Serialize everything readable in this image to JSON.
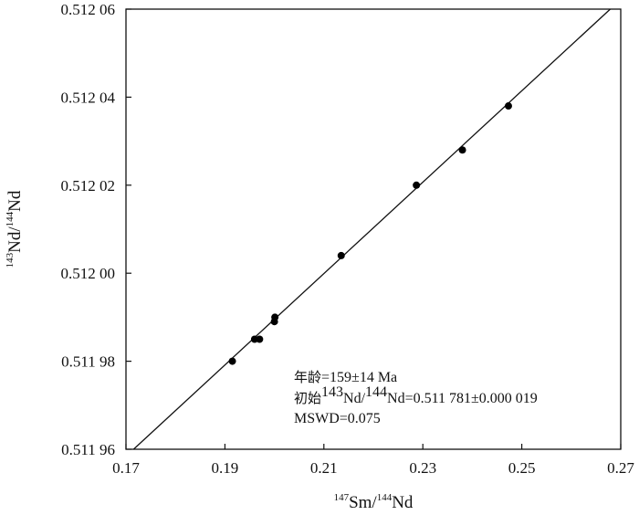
{
  "chart_data": {
    "type": "scatter",
    "title": "",
    "xlabel": {
      "sup1": "147",
      "base1": "Sm/",
      "sup2": "144",
      "base2": "Nd"
    },
    "ylabel": {
      "sup1": "143",
      "base1": "Nd/",
      "sup2": "144",
      "base2": "Nd"
    },
    "xlim": [
      0.17,
      0.27
    ],
    "ylim": [
      0.51196,
      0.51206
    ],
    "x_ticks": [
      0.17,
      0.19,
      0.21,
      0.23,
      0.25,
      0.27
    ],
    "x_tick_labels": [
      "0.17",
      "0.19",
      "0.21",
      "0.23",
      "0.25",
      "0.27"
    ],
    "y_ticks": [
      0.51196,
      0.51198,
      0.512,
      0.51202,
      0.51204,
      0.51206
    ],
    "y_tick_labels": [
      "0.511 96",
      "0.511 98",
      "0.512 00",
      "0.512 02",
      "0.512 04",
      "0.512 06"
    ],
    "grid": false,
    "points": [
      {
        "x": 0.1915,
        "y": 0.51198
      },
      {
        "x": 0.196,
        "y": 0.511985
      },
      {
        "x": 0.197,
        "y": 0.511985
      },
      {
        "x": 0.2,
        "y": 0.511989
      },
      {
        "x": 0.2001,
        "y": 0.51199
      },
      {
        "x": 0.2135,
        "y": 0.512004
      },
      {
        "x": 0.2287,
        "y": 0.51202
      },
      {
        "x": 0.238,
        "y": 0.512028
      },
      {
        "x": 0.2473,
        "y": 0.512038
      }
    ],
    "fit_line": {
      "x": [
        0.17,
        0.27
      ],
      "y": [
        0.5119584,
        0.5120622
      ]
    },
    "annotations": {
      "age_label": "年龄",
      "age_value": "=159±14 Ma",
      "initial_label": "初始",
      "initial_sup1": "143",
      "initial_base1": "Nd/",
      "initial_sup2": "144",
      "initial_base2": "Nd",
      "initial_value": "=0.511 781±0.000 019",
      "mswd": "MSWD=0.075"
    }
  }
}
